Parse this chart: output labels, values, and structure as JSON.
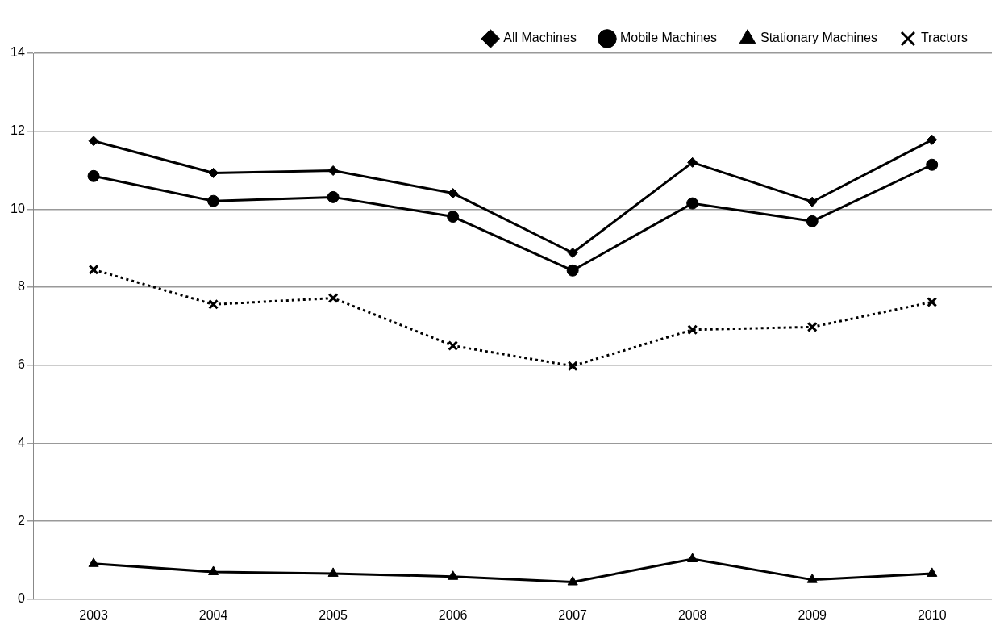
{
  "chart_data": {
    "type": "line",
    "categories": [
      "2003",
      "2004",
      "2005",
      "2006",
      "2007",
      "2008",
      "2009",
      "2010"
    ],
    "series": [
      {
        "name": "All Machines",
        "color": "#000000",
        "marker": "diamond",
        "line_style": "solid",
        "values": [
          11.75,
          10.93,
          10.99,
          10.41,
          8.88,
          11.2,
          10.19,
          11.78
        ]
      },
      {
        "name": "Mobile Machines",
        "color": "#000000",
        "marker": "circle",
        "line_style": "solid",
        "values": [
          10.85,
          10.21,
          10.31,
          9.81,
          8.43,
          10.15,
          9.69,
          11.14
        ]
      },
      {
        "name": "Stationary Machines",
        "color": "#000000",
        "marker": "triangle",
        "line_style": "solid",
        "values": [
          0.91,
          0.7,
          0.66,
          0.58,
          0.44,
          1.03,
          0.5,
          0.66
        ]
      },
      {
        "name": "Tractors",
        "color": "#000000",
        "marker": "cross",
        "line_style": "dotted",
        "values": [
          8.45,
          7.56,
          7.72,
          6.5,
          5.98,
          6.91,
          6.98,
          7.62
        ]
      }
    ],
    "ylim": [
      0,
      14
    ],
    "yticks": [
      0,
      2,
      4,
      6,
      8,
      10,
      12,
      14
    ],
    "grid": "y",
    "legend": "top right"
  }
}
